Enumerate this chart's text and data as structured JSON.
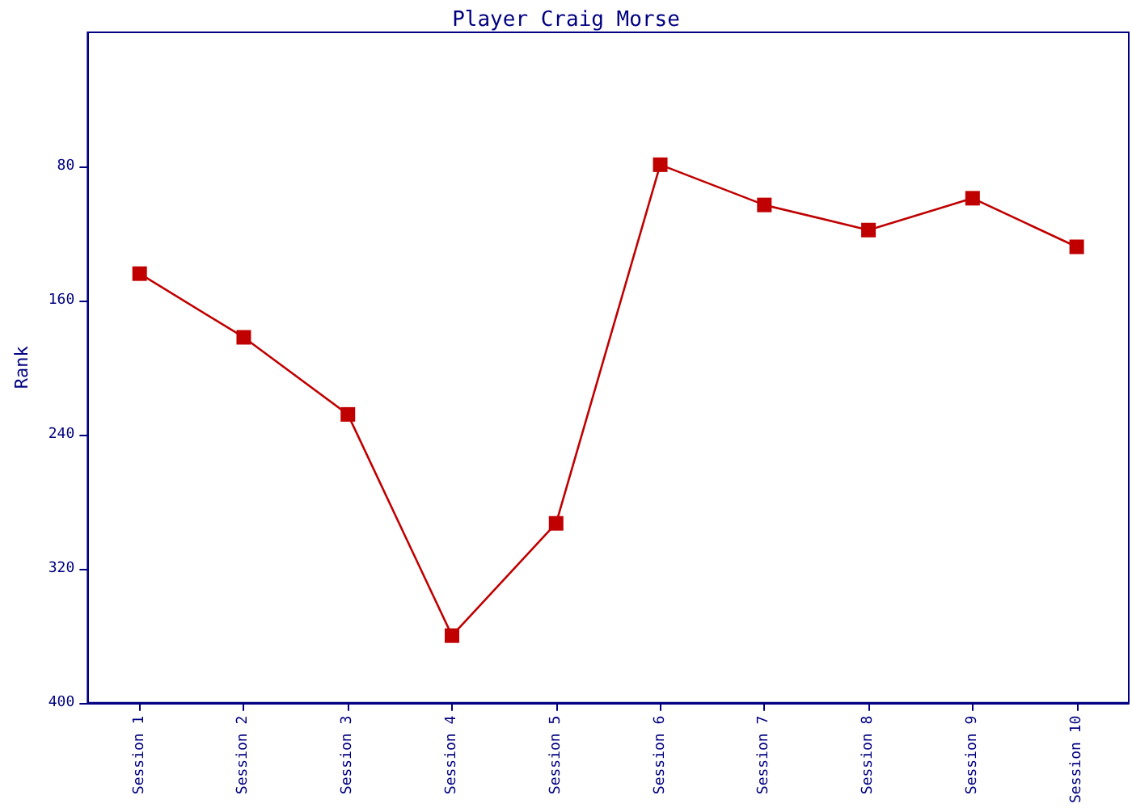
{
  "chart_data": {
    "type": "line",
    "title": "Player Craig Morse",
    "ylabel": "Rank",
    "categories": [
      "Session 1",
      "Session 2",
      "Session 3",
      "Session 4",
      "Session 5",
      "Session 6",
      "Session 7",
      "Session 8",
      "Session 9",
      "Session 10"
    ],
    "series": [
      {
        "color": "#c00000",
        "values": [
          144,
          182,
          228,
          360,
          293,
          79,
          103,
          118,
          99,
          128
        ]
      }
    ],
    "ylim": [
      400,
      0
    ],
    "yticks": [
      80,
      160,
      240,
      320,
      400
    ],
    "marker": "square",
    "line_style": "solid"
  }
}
